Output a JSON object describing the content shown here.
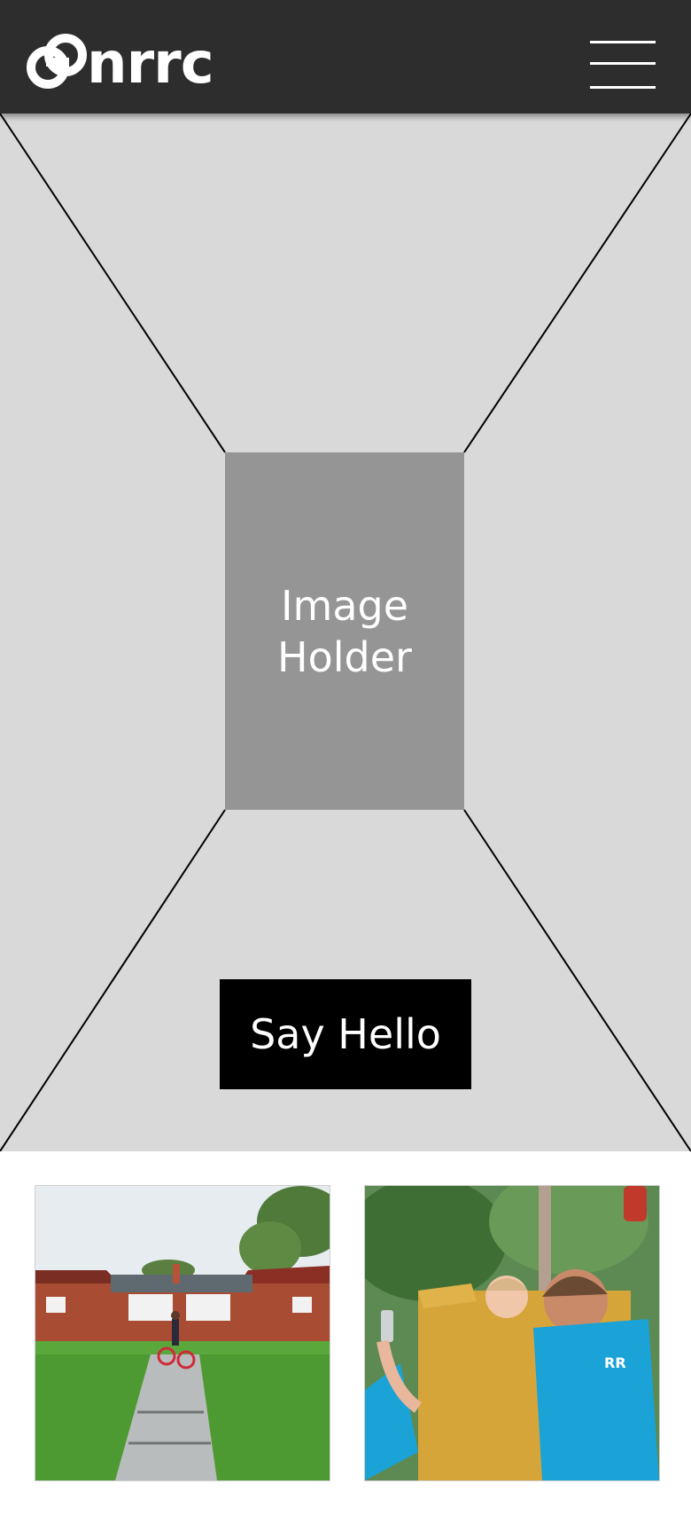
{
  "header": {
    "logo_text": "nrrc",
    "logo_icon": "chain-link-icon",
    "menu_icon": "hamburger-menu-icon"
  },
  "hero": {
    "image_placeholder_text": "Image\nHolder",
    "cta_label": "Say Hello"
  },
  "gallery": {
    "photos": [
      {
        "subject": "child on bicycle in front of brick duplex",
        "icon": "photo-image"
      },
      {
        "subject": "toddler peeking over yellow playground wall",
        "icon": "photo-image"
      }
    ]
  },
  "colors": {
    "header_bg": "#2d2d2d",
    "hero_bg": "#d9d9d9",
    "placeholder_bg": "#959595",
    "cta_bg": "#000000",
    "text_light": "#ffffff"
  }
}
